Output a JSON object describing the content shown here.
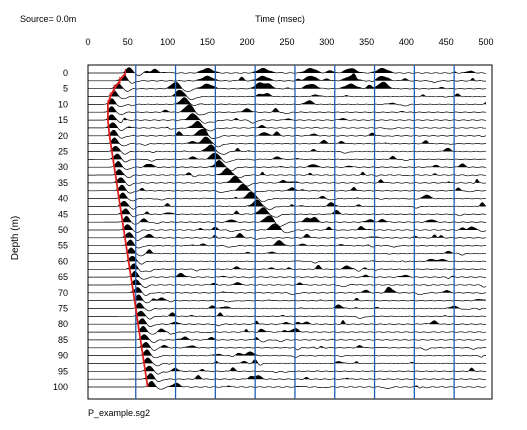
{
  "chart_data": {
    "type": "seismic-wiggle",
    "source_label": "Source= 0.0m",
    "xlabel": "Time (msec)",
    "ylabel": "Depth (m)",
    "filename": "P_example.sg2",
    "x_ticks": [
      0,
      50,
      100,
      150,
      200,
      250,
      300,
      350,
      400,
      450,
      500
    ],
    "xlim": [
      0,
      500
    ],
    "y_ticks": [
      0,
      5,
      10,
      15,
      20,
      25,
      30,
      35,
      40,
      45,
      50,
      55,
      60,
      65,
      70,
      75,
      80,
      85,
      90,
      95,
      100
    ],
    "ylim": [
      0,
      100
    ],
    "trace_interval_m": 2.5,
    "vertical_gridlines_ms": [
      60,
      110,
      160,
      210,
      260,
      310,
      360,
      410,
      460
    ],
    "gridline_color": "#1f5fb4",
    "pick_color": "#e02020",
    "first_break_picks": [
      {
        "depth": 0,
        "time": 47
      },
      {
        "depth": 2.5,
        "time": 40
      },
      {
        "depth": 5,
        "time": 33
      },
      {
        "depth": 7.5,
        "time": 28
      },
      {
        "depth": 10,
        "time": 25
      },
      {
        "depth": 15,
        "time": 25
      },
      {
        "depth": 20,
        "time": 27
      },
      {
        "depth": 25,
        "time": 30
      },
      {
        "depth": 30,
        "time": 33
      },
      {
        "depth": 35,
        "time": 36
      },
      {
        "depth": 40,
        "time": 39
      },
      {
        "depth": 45,
        "time": 42
      },
      {
        "depth": 50,
        "time": 45
      },
      {
        "depth": 55,
        "time": 48
      },
      {
        "depth": 60,
        "time": 51
      },
      {
        "depth": 65,
        "time": 54
      },
      {
        "depth": 70,
        "time": 57
      },
      {
        "depth": 75,
        "time": 60
      },
      {
        "depth": 80,
        "time": 63
      },
      {
        "depth": 85,
        "time": 66
      },
      {
        "depth": 90,
        "time": 69
      },
      {
        "depth": 95,
        "time": 72
      },
      {
        "depth": 100,
        "time": 75
      }
    ],
    "early_events": [
      {
        "time": 150,
        "depth_start": 0,
        "depth_end": 5
      },
      {
        "time": 220,
        "depth_start": 0,
        "depth_end": 5
      },
      {
        "time": 280,
        "depth_start": 0,
        "depth_end": 5
      },
      {
        "time": 330,
        "depth_start": 0,
        "depth_end": 5
      },
      {
        "time": 370,
        "depth_start": 0,
        "depth_end": 5
      }
    ],
    "tube_wave": [
      {
        "depth": 5,
        "time": 110
      },
      {
        "depth": 30,
        "time": 165
      },
      {
        "depth": 40,
        "time": 205
      },
      {
        "depth": 50,
        "time": 235
      }
    ]
  }
}
